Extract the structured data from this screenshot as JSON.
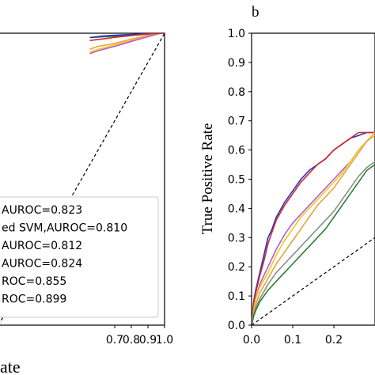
{
  "chart_data": [
    {
      "type": "line",
      "panel_label": "",
      "xlabel": "ate",
      "ylabel": "",
      "xlim": [
        0.0,
        1.0
      ],
      "ylim": [
        0.0,
        1.0
      ],
      "x_ticks": [
        "0.7",
        "0.8",
        "0.9",
        "1.0"
      ],
      "x_tick_values": [
        0.7,
        0.8,
        0.9,
        1.0
      ],
      "legend_position": "lower-right",
      "legend": [
        "AUROC=0.823",
        "ed SVM,AUROC=0.810",
        "AUROC=0.812",
        "AUROC=0.824",
        "ROC=0.855",
        "ROC=0.899"
      ],
      "series": [
        {
          "color": "#2e7d32",
          "x": [
            0.55,
            0.7,
            0.8,
            0.9,
            0.98,
            1.0
          ],
          "y": [
            0.985,
            0.99,
            0.995,
            0.998,
            1.0,
            1.0
          ]
        },
        {
          "color": "#f2c81e",
          "x": [
            0.55,
            0.6,
            0.7,
            0.8,
            0.9,
            0.98,
            1.0
          ],
          "y": [
            0.935,
            0.945,
            0.96,
            0.975,
            0.99,
            1.0,
            1.0
          ]
        },
        {
          "color": "#b15cd9",
          "x": [
            0.55,
            0.6,
            0.7,
            0.8,
            0.9,
            0.98,
            1.0
          ],
          "y": [
            0.93,
            0.94,
            0.955,
            0.972,
            0.988,
            1.0,
            1.0
          ]
        },
        {
          "color": "#e8a33c",
          "x": [
            0.55,
            0.6,
            0.7,
            0.8,
            0.9,
            0.98,
            1.0
          ],
          "y": [
            0.945,
            0.955,
            0.965,
            0.98,
            0.993,
            1.0,
            1.0
          ]
        },
        {
          "color": "#1f35c4",
          "x": [
            0.55,
            0.62,
            0.7,
            0.8,
            0.9,
            0.98,
            1.0
          ],
          "y": [
            0.985,
            0.99,
            0.993,
            0.996,
            0.999,
            1.0,
            1.0
          ]
        },
        {
          "color": "#d62728",
          "x": [
            0.55,
            0.62,
            0.7,
            0.8,
            0.9,
            0.98,
            1.0
          ],
          "y": [
            0.975,
            0.98,
            0.986,
            0.992,
            0.997,
            1.0,
            1.0
          ]
        },
        {
          "color": "#000000",
          "dash": true,
          "x": [
            0.0,
            1.0
          ],
          "y": [
            0.0,
            1.0
          ]
        }
      ]
    },
    {
      "type": "line",
      "panel_label": "b",
      "xlabel": "",
      "ylabel": "True Positive Rate",
      "xlim": [
        0.0,
        0.3
      ],
      "ylim": [
        0.0,
        1.0
      ],
      "x_ticks": [
        "0.0",
        "0.1",
        "0.2"
      ],
      "x_tick_values": [
        0.0,
        0.1,
        0.2
      ],
      "y_ticks": [
        "0.0",
        "0.1",
        "0.2",
        "0.3",
        "0.4",
        "0.5",
        "0.6",
        "0.7",
        "0.8",
        "0.9",
        "1.0"
      ],
      "y_tick_values": [
        0.0,
        0.1,
        0.2,
        0.3,
        0.4,
        0.5,
        0.6,
        0.7,
        0.8,
        0.9,
        1.0
      ],
      "series": [
        {
          "color": "#1f35c4",
          "x": [
            0.0,
            0.005,
            0.01,
            0.02,
            0.03,
            0.04,
            0.05,
            0.06,
            0.08,
            0.1,
            0.12,
            0.14,
            0.16,
            0.18,
            0.2,
            0.22,
            0.24,
            0.26,
            0.28,
            0.3
          ],
          "y": [
            0.0,
            0.08,
            0.12,
            0.18,
            0.24,
            0.3,
            0.33,
            0.37,
            0.42,
            0.46,
            0.5,
            0.53,
            0.55,
            0.57,
            0.6,
            0.62,
            0.64,
            0.65,
            0.66,
            0.66
          ]
        },
        {
          "color": "#d62728",
          "x": [
            0.0,
            0.005,
            0.01,
            0.02,
            0.03,
            0.04,
            0.05,
            0.06,
            0.08,
            0.1,
            0.12,
            0.14,
            0.16,
            0.18,
            0.2,
            0.22,
            0.24,
            0.26,
            0.28,
            0.3
          ],
          "y": [
            0.0,
            0.07,
            0.11,
            0.17,
            0.22,
            0.28,
            0.32,
            0.36,
            0.41,
            0.45,
            0.49,
            0.52,
            0.55,
            0.57,
            0.6,
            0.62,
            0.64,
            0.66,
            0.66,
            0.66
          ]
        },
        {
          "color": "#b15cd9",
          "x": [
            0.0,
            0.005,
            0.01,
            0.02,
            0.04,
            0.06,
            0.08,
            0.1,
            0.12,
            0.14,
            0.16,
            0.18,
            0.2,
            0.22,
            0.24,
            0.26,
            0.28,
            0.3
          ],
          "y": [
            0.0,
            0.05,
            0.09,
            0.14,
            0.2,
            0.26,
            0.31,
            0.35,
            0.38,
            0.41,
            0.44,
            0.47,
            0.5,
            0.53,
            0.56,
            0.6,
            0.63,
            0.66
          ]
        },
        {
          "color": "#f2c81e",
          "x": [
            0.0,
            0.005,
            0.01,
            0.02,
            0.04,
            0.06,
            0.08,
            0.1,
            0.12,
            0.14,
            0.16,
            0.18,
            0.2,
            0.22,
            0.24,
            0.26,
            0.28,
            0.3
          ],
          "y": [
            0.0,
            0.05,
            0.09,
            0.13,
            0.18,
            0.24,
            0.29,
            0.33,
            0.37,
            0.4,
            0.43,
            0.46,
            0.49,
            0.52,
            0.56,
            0.6,
            0.63,
            0.66
          ]
        },
        {
          "color": "#e8a33c",
          "x": [
            0.0,
            0.005,
            0.01,
            0.02,
            0.04,
            0.06,
            0.08,
            0.1,
            0.12,
            0.14,
            0.16,
            0.18,
            0.2,
            0.22,
            0.24,
            0.26,
            0.28,
            0.3
          ],
          "y": [
            0.0,
            0.04,
            0.07,
            0.11,
            0.16,
            0.21,
            0.25,
            0.29,
            0.33,
            0.37,
            0.41,
            0.44,
            0.47,
            0.51,
            0.55,
            0.59,
            0.63,
            0.65
          ]
        },
        {
          "color": "#8c8c8c",
          "x": [
            0.0,
            0.005,
            0.01,
            0.02,
            0.04,
            0.06,
            0.08,
            0.1,
            0.12,
            0.14,
            0.16,
            0.18,
            0.2,
            0.22,
            0.24,
            0.26,
            0.28,
            0.3
          ],
          "y": [
            0.0,
            0.04,
            0.06,
            0.09,
            0.14,
            0.18,
            0.21,
            0.24,
            0.27,
            0.3,
            0.33,
            0.36,
            0.39,
            0.43,
            0.47,
            0.51,
            0.54,
            0.56
          ]
        },
        {
          "color": "#2e7d32",
          "x": [
            0.0,
            0.005,
            0.01,
            0.02,
            0.04,
            0.06,
            0.08,
            0.1,
            0.12,
            0.14,
            0.16,
            0.18,
            0.2,
            0.22,
            0.24,
            0.26,
            0.28,
            0.3
          ],
          "y": [
            0.0,
            0.03,
            0.05,
            0.08,
            0.12,
            0.15,
            0.18,
            0.21,
            0.24,
            0.27,
            0.3,
            0.33,
            0.37,
            0.41,
            0.45,
            0.49,
            0.53,
            0.55
          ]
        },
        {
          "color": "#000000",
          "dash": true,
          "x": [
            0.0,
            0.3
          ],
          "y": [
            0.0,
            0.3
          ]
        }
      ]
    }
  ]
}
